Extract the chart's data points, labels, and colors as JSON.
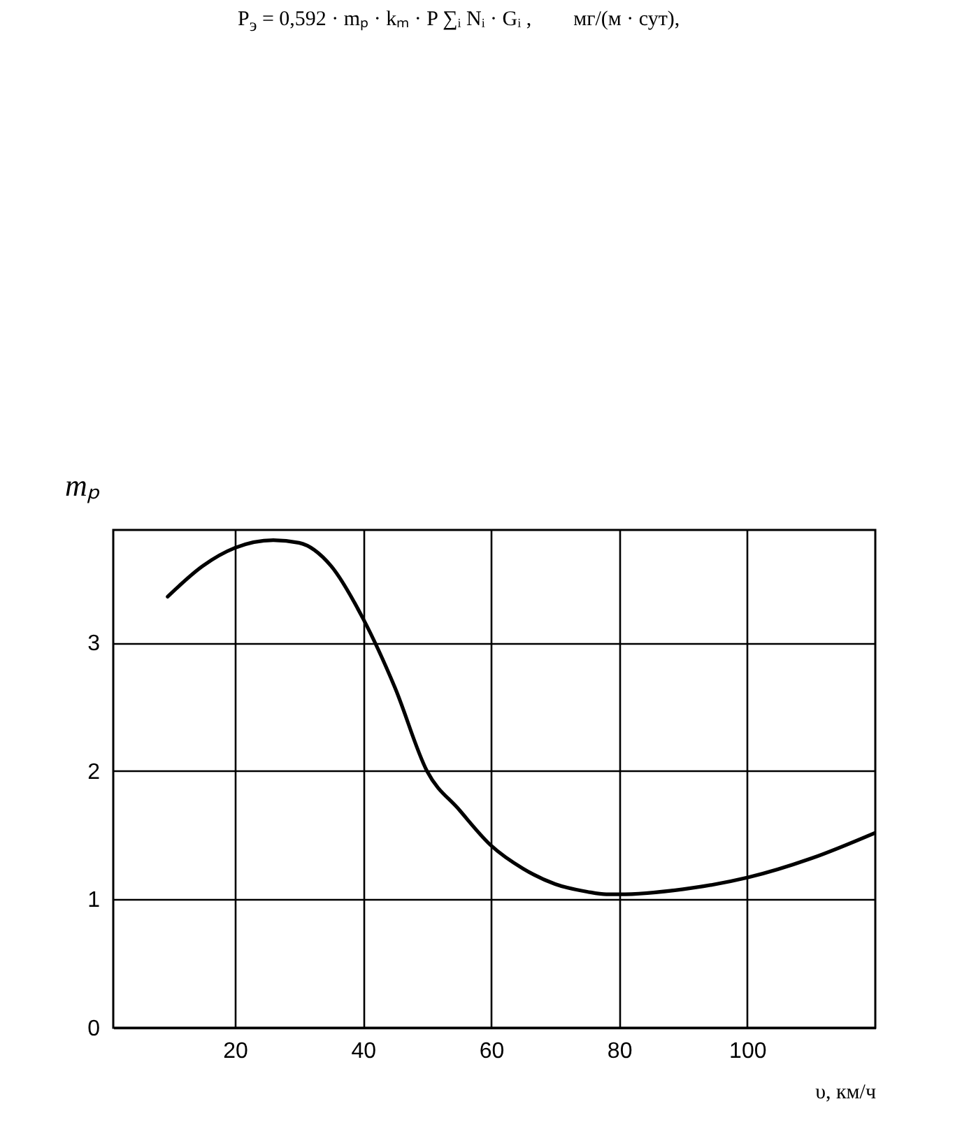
{
  "chart_data": {
    "type": "line",
    "annotations": [
      "P$_{э}$ = 0,592 · mₚ · kₘ · P ∑ᵢ Nᵢ · Gᵢ ,        мг/(м · сут),"
    ],
    "xlabel": "υ, км/ч",
    "ylabel": "mₚ",
    "x": [
      9.5,
      15,
      20,
      26,
      30,
      35,
      40,
      45,
      50,
      55,
      60,
      65,
      70,
      75,
      78,
      80,
      90,
      100,
      110,
      120
    ],
    "series": [
      {
        "color": "#000000",
        "values": [
          3.36,
          3.6,
          3.74,
          3.8,
          3.78,
          3.6,
          3.19,
          2.65,
          2.0,
          1.7,
          1.42,
          1.24,
          1.12,
          1.06,
          1.04,
          1.04,
          1.08,
          1.17,
          1.32,
          1.52
        ]
      }
    ],
    "xlim": [
      1,
      120
    ],
    "ylim": [
      0,
      3.88
    ],
    "xticks": [
      20,
      40,
      60,
      80,
      100
    ],
    "yticks": [
      0,
      1,
      2,
      3
    ],
    "grid": true,
    "marker": "none",
    "line_style": "solid"
  }
}
